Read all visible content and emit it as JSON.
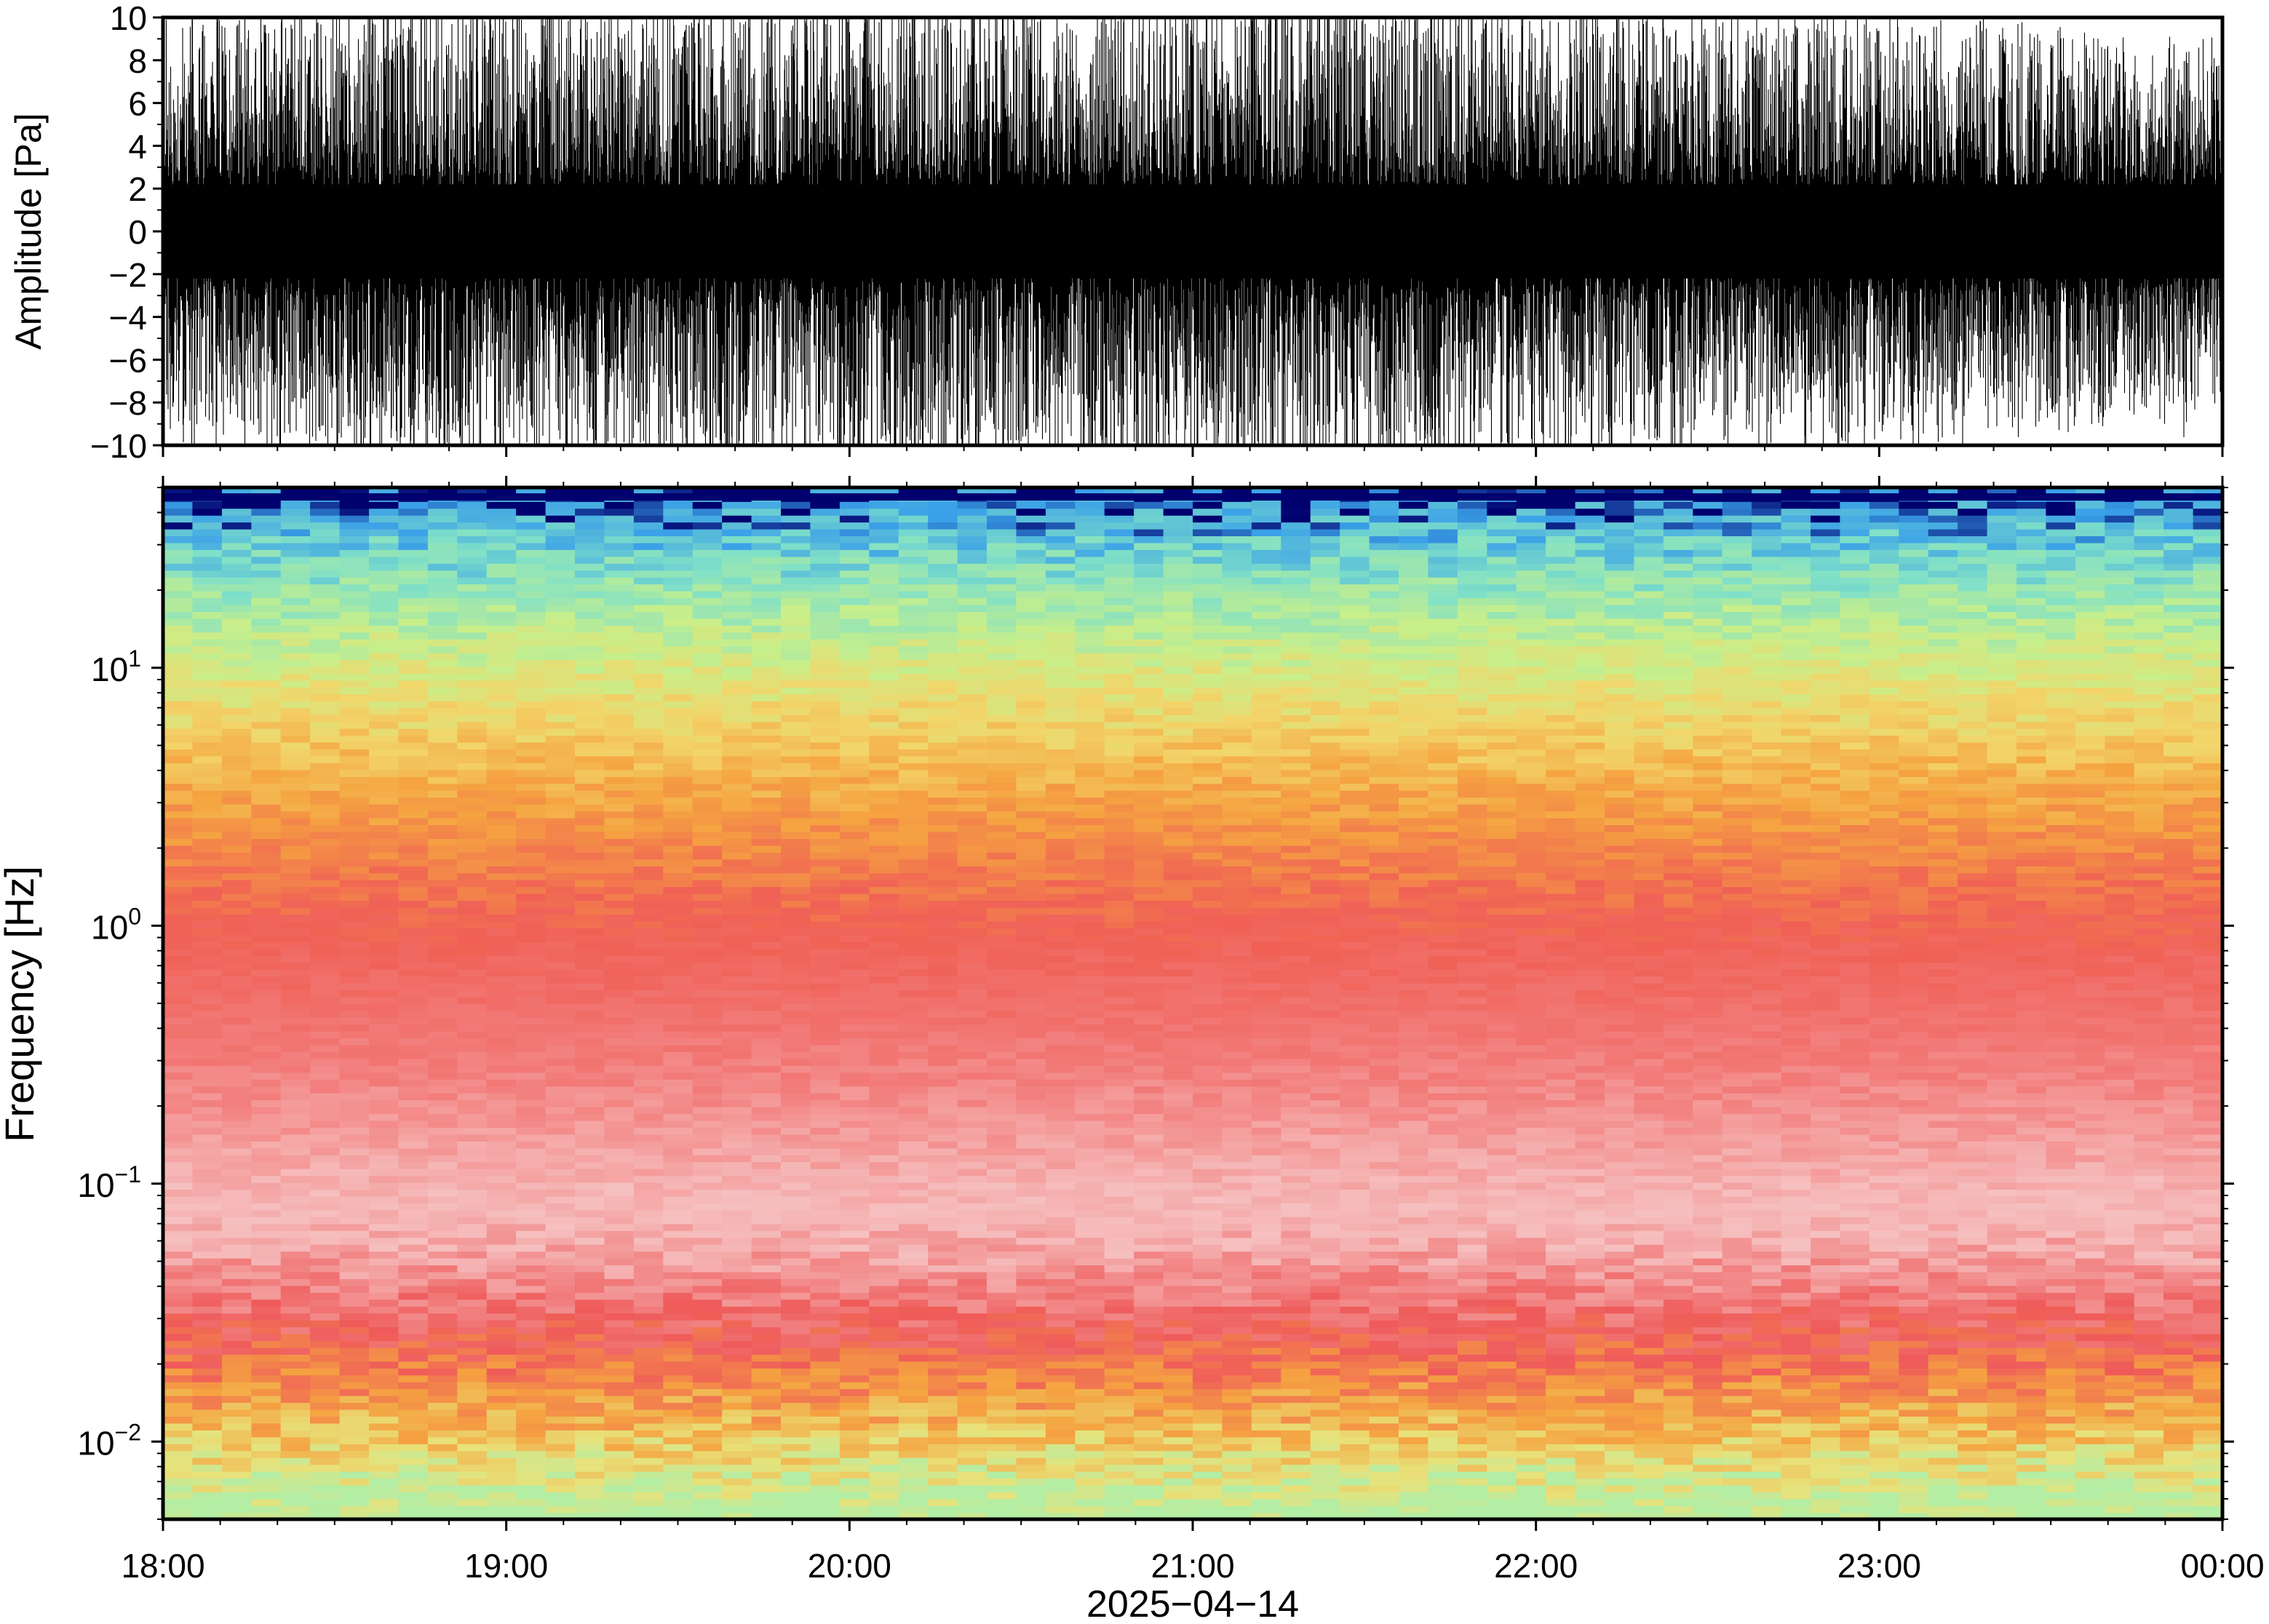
{
  "chart_data": [
    {
      "type": "line",
      "panel": "waveform",
      "ylabel": "Amplitude [Pa]",
      "ylim": [
        -10,
        10
      ],
      "yticks": [
        {
          "value": 10,
          "label": "10"
        },
        {
          "value": 8,
          "label": "8"
        },
        {
          "value": 6,
          "label": "6"
        },
        {
          "value": 4,
          "label": "4"
        },
        {
          "value": 2,
          "label": "2"
        },
        {
          "value": 0,
          "label": "0"
        },
        {
          "value": -2,
          "label": "−2"
        },
        {
          "value": -4,
          "label": "−4"
        },
        {
          "value": -6,
          "label": "−6"
        },
        {
          "value": -8,
          "label": "−8"
        },
        {
          "value": -10,
          "label": "−10"
        }
      ],
      "x_range_hours": [
        18,
        24
      ],
      "series": [
        {
          "values_hourly_envelope_note": "",
          "envelope_abs_pa": [
            {
              "time": "18:00",
              "value": 8
            },
            {
              "time": "18:30",
              "value": 9
            },
            {
              "time": "19:00",
              "value": 9.5
            },
            {
              "time": "19:30",
              "value": 9
            },
            {
              "time": "20:00",
              "value": 10
            },
            {
              "time": "20:30",
              "value": 9.5
            },
            {
              "time": "21:00",
              "value": 10
            },
            {
              "time": "21:30",
              "value": 10
            },
            {
              "time": "22:00",
              "value": 9
            },
            {
              "time": "22:30",
              "value": 8.5
            },
            {
              "time": "23:00",
              "value": 8
            },
            {
              "time": "23:30",
              "value": 7.5
            },
            {
              "time": "00:00",
              "value": 7
            }
          ]
        }
      ],
      "color": "#000000"
    },
    {
      "type": "heatmap",
      "panel": "spectrogram",
      "ylabel": "Frequency [Hz]",
      "yscale": "log",
      "ylim": [
        0.005,
        50
      ],
      "yticks": [
        {
          "value": 10,
          "base": "10",
          "exp": "1"
        },
        {
          "value": 1,
          "base": "10",
          "exp": "0"
        },
        {
          "value": 0.1,
          "base": "10",
          "exp": "−1"
        },
        {
          "value": 0.01,
          "base": "10",
          "exp": "−2"
        }
      ],
      "xticks": [
        "18:00",
        "19:00",
        "20:00",
        "21:00",
        "22:00",
        "23:00",
        "00:00"
      ],
      "xlabel": "2025−04−14",
      "colormap": [
        "#00006e",
        "#1f78d6",
        "#62d2e6",
        "#9fe8a8",
        "#e8ea76",
        "#f5a441",
        "#f05a5a",
        "#f6c4c4"
      ],
      "color_bands_by_frequency_hz": [
        {
          "freq": 48,
          "color": "#00006e"
        },
        {
          "freq": 40,
          "color": "#3aa0e8"
        },
        {
          "freq": 25,
          "color": "#7fe0c8"
        },
        {
          "freq": 12,
          "color": "#c8ef8a"
        },
        {
          "freq": 6,
          "color": "#f2d56a"
        },
        {
          "freq": 3,
          "color": "#f5a441"
        },
        {
          "freq": 1,
          "color": "#f06055"
        },
        {
          "freq": 0.3,
          "color": "#f27a78"
        },
        {
          "freq": 0.07,
          "color": "#f6c0c0"
        },
        {
          "freq": 0.025,
          "color": "#ef5a5a"
        },
        {
          "freq": 0.013,
          "color": "#f5a441"
        },
        {
          "freq": 0.008,
          "color": "#e8e27a"
        },
        {
          "freq": 0.0055,
          "color": "#b4eda4"
        }
      ]
    }
  ]
}
